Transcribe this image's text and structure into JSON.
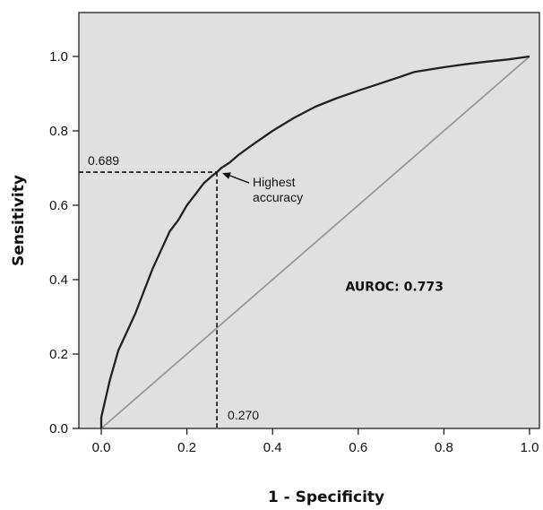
{
  "chart_data": {
    "type": "line",
    "title": "",
    "xlabel": "1 - Specificity",
    "ylabel": "Sensitivity",
    "xlim": [
      -0.05,
      1.02
    ],
    "ylim": [
      0.0,
      1.1
    ],
    "x_ticks": [
      0.0,
      0.2,
      0.4,
      0.6,
      0.8,
      1.0
    ],
    "x_tick_labels": [
      "0.0",
      "0.2",
      "0.4",
      "0.6",
      "0.8",
      "1.0"
    ],
    "y_ticks": [
      0.0,
      0.2,
      0.4,
      0.6,
      0.8,
      1.0
    ],
    "y_tick_labels": [
      "0.0",
      "0.2",
      "0.4",
      "0.6",
      "0.8",
      "1.0"
    ],
    "background_color": "#e0e0e0",
    "grid": false,
    "series": [
      {
        "color": "#222222",
        "x": [
          0.0,
          0.0,
          0.02,
          0.04,
          0.06,
          0.08,
          0.1,
          0.12,
          0.14,
          0.16,
          0.18,
          0.2,
          0.22,
          0.24,
          0.26,
          0.27,
          0.28,
          0.3,
          0.32,
          0.35,
          0.4,
          0.45,
          0.5,
          0.55,
          0.6,
          0.65,
          0.7,
          0.73,
          0.8,
          0.85,
          0.9,
          0.95,
          1.0
        ],
        "y": [
          0.0,
          0.03,
          0.13,
          0.21,
          0.26,
          0.31,
          0.37,
          0.43,
          0.48,
          0.53,
          0.56,
          0.6,
          0.63,
          0.66,
          0.68,
          0.689,
          0.7,
          0.715,
          0.735,
          0.76,
          0.8,
          0.835,
          0.865,
          0.888,
          0.908,
          0.927,
          0.946,
          0.958,
          0.971,
          0.979,
          0.986,
          0.992,
          1.0
        ]
      },
      {
        "color": "#999999",
        "x": [
          0.0,
          1.0
        ],
        "y": [
          0.0,
          1.0
        ]
      }
    ],
    "annotations": {
      "optimal_point": {
        "x": 0.27,
        "y": 0.689
      },
      "y_value_label": "0.689",
      "x_value_label": "0.270",
      "arrow_label_line1": "Highest",
      "arrow_label_line2": "accuracy",
      "auroc_label": "AUROC: 0.773"
    }
  }
}
